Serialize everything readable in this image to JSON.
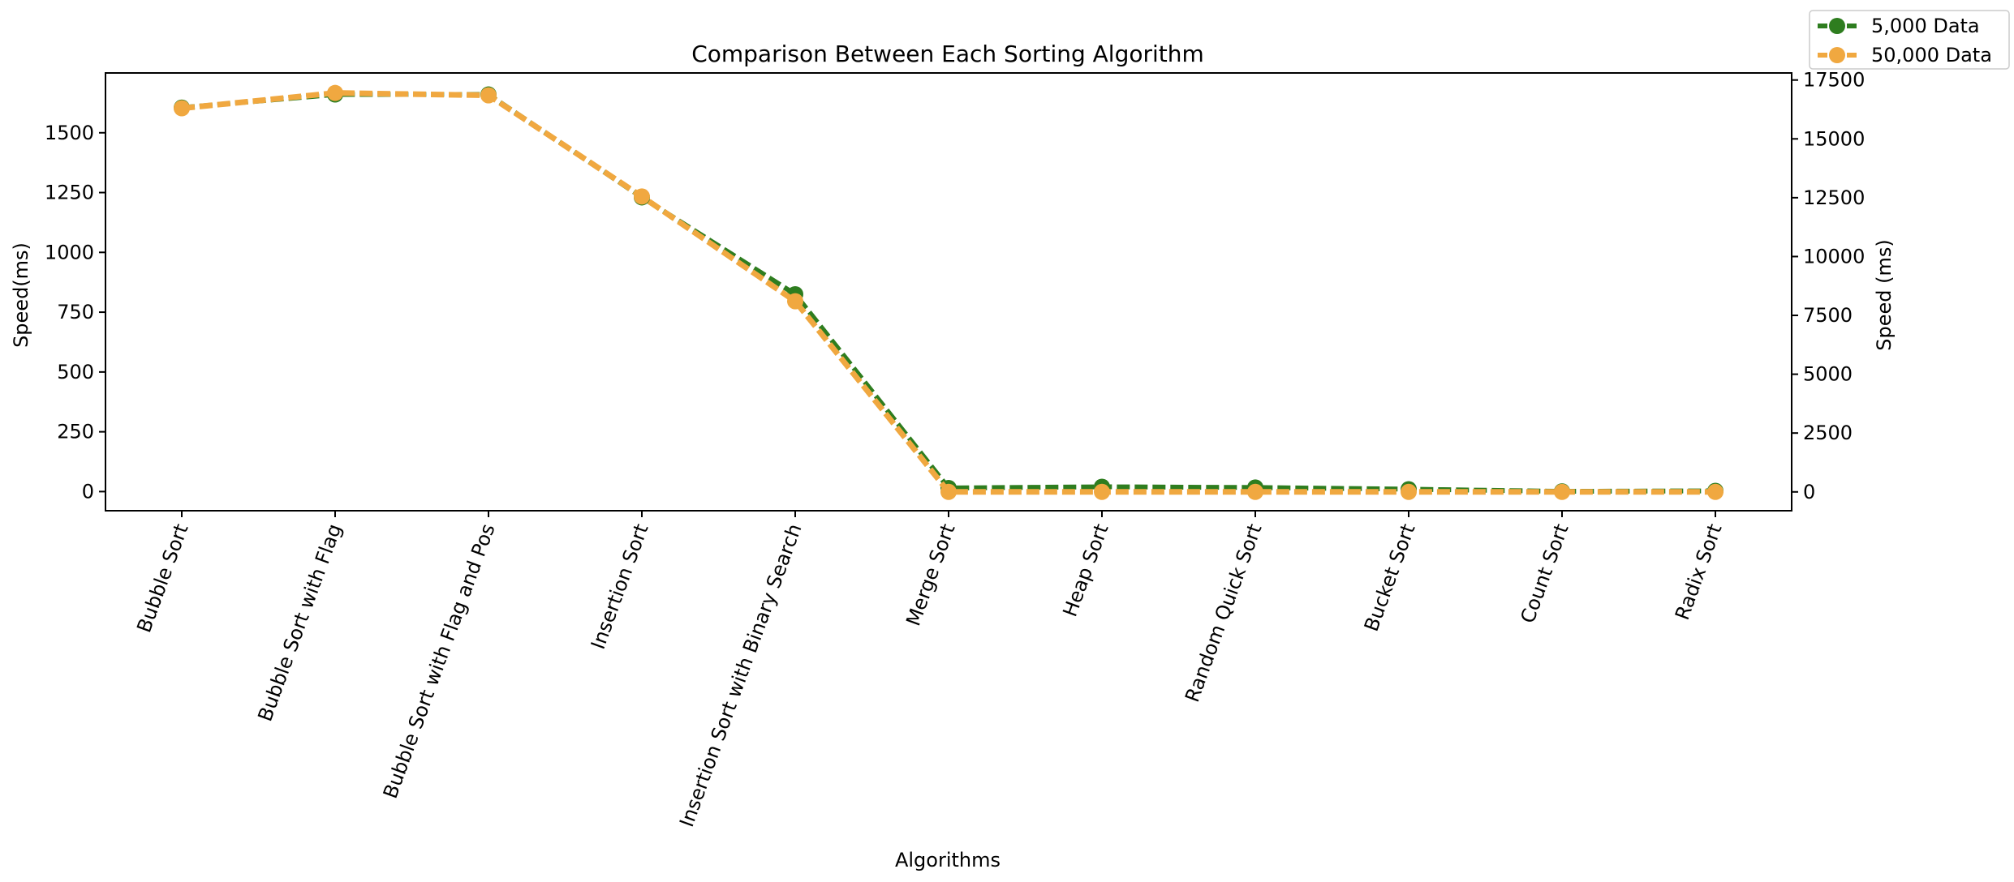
{
  "chart_data": {
    "type": "line",
    "title": "Comparison Between Each Sorting Algorithm",
    "xlabel": "Algorithms",
    "ylabel_left": "Speed(ms)",
    "ylabel_right": "Speed (ms)",
    "categories": [
      "Bubble Sort",
      "Bubble Sort with Flag",
      "Bubble Sort with Flag and Pos",
      "Insertion Sort",
      "Insertion Sort with Binary Search",
      "Merge Sort",
      "Heap Sort",
      "Random Quick Sort",
      "Bucket Sort",
      "Count Sort",
      "Radix Sort"
    ],
    "left_axis": {
      "ylim": [
        -80,
        1750
      ],
      "ticks": [
        0,
        250,
        500,
        750,
        1000,
        1250,
        1500
      ]
    },
    "right_axis": {
      "ylim": [
        -800,
        17800
      ],
      "ticks": [
        0,
        2500,
        5000,
        7500,
        10000,
        12500,
        15000,
        17500
      ]
    },
    "series": [
      {
        "name": "5,000 Data",
        "axis": "left",
        "color": "#2e7d1f",
        "values": [
          1605,
          1660,
          1660,
          1230,
          825,
          15,
          20,
          17,
          10,
          1,
          3
        ]
      },
      {
        "name": "50,000 Data",
        "axis": "right",
        "color": "#f0a840",
        "values": [
          16300,
          16950,
          16850,
          12550,
          8100,
          0,
          0,
          0,
          0,
          0,
          0
        ]
      }
    ],
    "legend": "top-right",
    "grid": false
  }
}
